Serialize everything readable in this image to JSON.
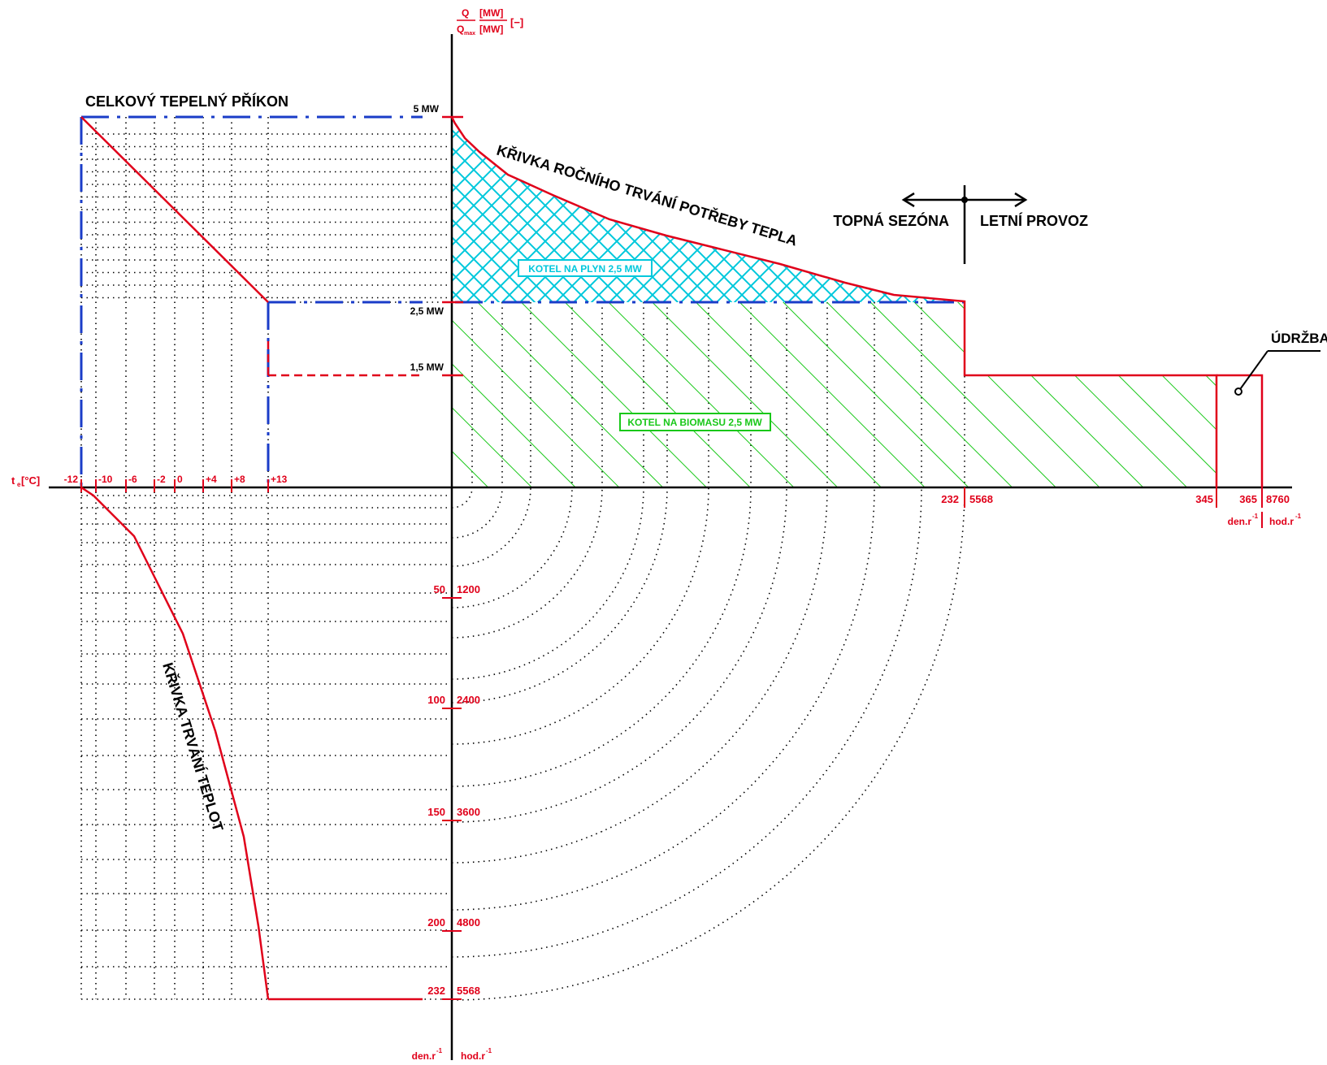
{
  "colors": {
    "axis": "#000000",
    "curve": "#e0001a",
    "gas": "#00c8dc",
    "biomass": "#19c819",
    "dash": "#1a3cc8"
  },
  "labels": {
    "total_heat_input": "CELKOVÝ TEPELNÝ PŘÍKON",
    "annual_curve": "KŘIVKA ROČNÍHO TRVÁNÍ POTŘEBY TEPLA",
    "temp_curve": "KŘIVKA TRVÁNÍ TEPLOT",
    "heating_season": "TOPNÁ SEZÓNA",
    "summer_operation": "LETNÍ PROVOZ",
    "maintenance": "ÚDRŽBA",
    "gas_boiler": "KOTEL NA PLYN 2,5 MW",
    "biomass_boiler": "KOTEL NA BIOMASU 2,5 MW"
  },
  "y_axis": {
    "label_num": "Q",
    "label_den": "Q",
    "label_sub": "max",
    "unit_num": "[MW]",
    "unit_den": "[MW]",
    "unit_ratio": "[−]",
    "ticks": [
      "5 MW",
      "2,5 MW",
      "1,5 MW"
    ]
  },
  "temp_axis": {
    "label": "t",
    "label_sub": "e",
    "label_unit": "[°C]",
    "ticks": [
      "-12",
      "-10",
      "-6",
      "-2",
      "0",
      "+4",
      "+8",
      "+13"
    ]
  },
  "time_axis": {
    "ticks_days": [
      "232",
      "345",
      "365"
    ],
    "ticks_hours": [
      "5568",
      "8760"
    ],
    "unit_days": "den.r",
    "unit_hours": "hod.r",
    "unit_exp": "-1"
  },
  "down_axis": {
    "days": [
      "50",
      "100",
      "150",
      "200",
      "232"
    ],
    "hours": [
      "1200",
      "2400",
      "3600",
      "4800",
      "5568"
    ],
    "unit_days": "den.r",
    "unit_hours": "hod.r",
    "unit_exp": "-1"
  }
}
